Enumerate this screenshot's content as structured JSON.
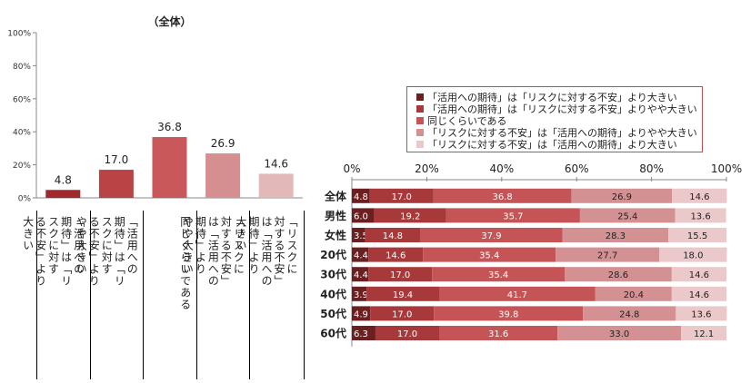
{
  "chart_data": [
    {
      "type": "bar",
      "title": "（全体）",
      "categories": [
        "「活用への期待」は「リスクに対する不安」より大きい",
        "「活用への期待」は「リスクに対する不安」よりやや大きい",
        "同じくらいである",
        "「リスクに対する不安」は「活用への期待」よりやや大きい",
        "「リスクに対する不安」は「活用への期待」より大きい"
      ],
      "values": [
        4.8,
        17.0,
        36.8,
        26.9,
        14.6
      ],
      "yticks": [
        "0%",
        "20%",
        "40%",
        "60%",
        "80%",
        "100%"
      ],
      "ylim": [
        0,
        100
      ],
      "colors": [
        "#9e2a2b",
        "#b84446",
        "#c9585a",
        "#d58f90",
        "#e3b8b9"
      ],
      "grid": false
    },
    {
      "type": "bar",
      "orientation": "horizontal",
      "stacked": true,
      "categories": [
        "全体",
        "男性",
        "女性",
        "20代",
        "30代",
        "40代",
        "50代",
        "60代"
      ],
      "xticks": [
        "0%",
        "20%",
        "40%",
        "60%",
        "80%",
        "100%"
      ],
      "xlim": [
        0,
        100
      ],
      "legend_position": "top",
      "series": [
        {
          "name": "「活用への期待」は「リスクに対する不安」より大きい",
          "color": "#6b1f20",
          "label_color": "#ffffff",
          "values": [
            4.8,
            6.0,
            3.5,
            4.4,
            4.4,
            3.9,
            4.9,
            6.3
          ]
        },
        {
          "name": "「活用への期待」は「リスクに対する不安」よりやや大きい",
          "color": "#a8393a",
          "label_color": "#ffffff",
          "values": [
            17.0,
            19.2,
            14.8,
            14.6,
            17.0,
            19.4,
            17.0,
            17.0
          ]
        },
        {
          "name": "同じくらいである",
          "color": "#c55456",
          "label_color": "#ffffff",
          "values": [
            36.8,
            35.7,
            37.9,
            35.4,
            35.4,
            41.7,
            39.8,
            31.6
          ]
        },
        {
          "name": "「リスクに対する不安」は「活用への期待」よりやや大きい",
          "color": "#d39193",
          "label_color": "#222222",
          "values": [
            26.9,
            25.4,
            28.3,
            27.7,
            28.6,
            20.4,
            24.8,
            33.0
          ]
        },
        {
          "name": "「リスクに対する不安」は「活用への期待」より大きい",
          "color": "#ebc9ca",
          "label_color": "#222222",
          "values": [
            14.6,
            13.6,
            15.5,
            18.0,
            14.6,
            14.6,
            13.6,
            12.1
          ]
        }
      ]
    }
  ],
  "left_labels": [
    "「活用への\n期待」は「リ\nスクに対す\nる不安」より\n大きい",
    "「活用への\n期待」は「リ\nスクに対す\nる不安」より\nやや大きい",
    "同じくらいである",
    "「リスクに\n対する不安」\nは「活用への\n期待」より\nやや大きい",
    "「リスクに\n対する不安」\nは「活用への\n期待」より\n大きい"
  ]
}
